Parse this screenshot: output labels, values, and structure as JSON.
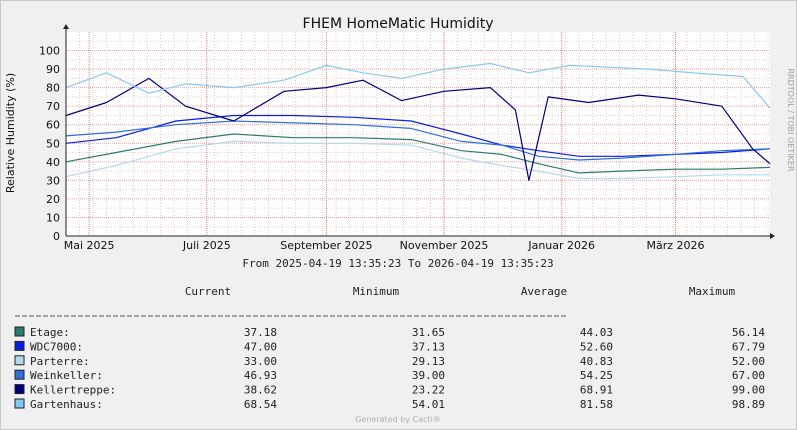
{
  "chart_data": {
    "type": "line",
    "title": "FHEM HomeMatic Humidity",
    "ylabel": "Relative Humidity (%)",
    "ylim": [
      0,
      110
    ],
    "yticks": [
      "0",
      "10",
      "20",
      "30",
      "40",
      "50",
      "60",
      "70",
      "80",
      "90",
      "100"
    ],
    "x_range": [
      "2025-04-19",
      "2026-04-19"
    ],
    "xticks": [
      {
        "date": "2025-05-01",
        "label": "Mai 2025"
      },
      {
        "date": "2025-07-01",
        "label": "Juli 2025"
      },
      {
        "date": "2025-09-01",
        "label": "September 2025"
      },
      {
        "date": "2025-11-01",
        "label": "November 2025"
      },
      {
        "date": "2026-01-01",
        "label": "Januar 2026"
      },
      {
        "date": "2026-03-01",
        "label": "März 2026"
      }
    ],
    "grid": true,
    "period_text": "From 2025-04-19 13:35:23 To 2026-04-19 13:35:23",
    "side_text": "RRDTOOL / TOBI OETIKER",
    "footer": "Generated by Cacti®",
    "legend_headers": {
      "current": "Current",
      "minimum": "Minimum",
      "average": "Average",
      "maximum": "Maximum"
    },
    "series": [
      {
        "name": "Etage:",
        "color": "#2e7a70",
        "current": "37.18",
        "minimum": "31.65",
        "average": "44.03",
        "maximum": "56.14",
        "x": [
          "2025-04-19",
          "2025-05-15",
          "2025-06-15",
          "2025-07-15",
          "2025-08-15",
          "2025-09-15",
          "2025-10-15",
          "2025-11-10",
          "2025-12-01",
          "2025-12-20",
          "2026-01-10",
          "2026-02-01",
          "2026-03-01",
          "2026-03-25",
          "2026-04-19"
        ],
        "values": [
          40,
          45,
          51,
          55,
          53,
          53,
          52,
          46,
          44,
          39,
          34,
          35,
          36,
          36,
          37
        ]
      },
      {
        "name": "WDC7000:",
        "color": "#0a1ee0",
        "current": "47.00",
        "minimum": "37.13",
        "average": "52.60",
        "maximum": "67.79",
        "x": [
          "2025-04-19",
          "2025-05-15",
          "2025-06-15",
          "2025-07-15",
          "2025-08-15",
          "2025-09-15",
          "2025-10-15",
          "2025-11-10",
          "2025-12-01",
          "2025-12-20",
          "2026-01-10",
          "2026-02-01",
          "2026-03-01",
          "2026-03-25",
          "2026-04-19"
        ],
        "values": [
          50,
          53,
          62,
          65,
          65,
          64,
          62,
          55,
          49,
          46,
          43,
          43,
          44,
          45,
          47
        ]
      },
      {
        "name": "Parterre:",
        "color": "#b4d8ee",
        "current": "33.00",
        "minimum": "29.13",
        "average": "40.83",
        "maximum": "52.00",
        "x": [
          "2025-04-19",
          "2025-05-15",
          "2025-06-15",
          "2025-07-15",
          "2025-08-15",
          "2025-09-15",
          "2025-10-15",
          "2025-11-10",
          "2025-12-01",
          "2025-12-20",
          "2026-01-10",
          "2026-02-01",
          "2026-03-01",
          "2026-03-25",
          "2026-04-19"
        ],
        "values": [
          32,
          38,
          47,
          51,
          50,
          50,
          49,
          42,
          38,
          35,
          31,
          31,
          32,
          33,
          33
        ]
      },
      {
        "name": "Weinkeller:",
        "color": "#2f6fd8",
        "current": "46.93",
        "minimum": "39.00",
        "average": "54.25",
        "maximum": "67.00",
        "x": [
          "2025-04-19",
          "2025-05-15",
          "2025-06-15",
          "2025-07-15",
          "2025-08-15",
          "2025-09-15",
          "2025-10-15",
          "2025-11-10",
          "2025-12-01",
          "2025-12-20",
          "2026-01-10",
          "2026-02-01",
          "2026-03-01",
          "2026-03-25",
          "2026-04-19"
        ],
        "values": [
          54,
          56,
          60,
          62,
          61,
          60,
          58,
          51,
          49,
          43,
          41,
          42,
          44,
          46,
          47
        ]
      },
      {
        "name": "Kellertreppe:",
        "color": "#00007a",
        "current": "38.62",
        "minimum": "23.22",
        "average": "68.91",
        "maximum": "99.00",
        "x": [
          "2025-04-19",
          "2025-05-10",
          "2025-06-01",
          "2025-06-20",
          "2025-07-15",
          "2025-08-10",
          "2025-09-01",
          "2025-09-20",
          "2025-10-10",
          "2025-11-01",
          "2025-11-25",
          "2025-12-08",
          "2025-12-15",
          "2025-12-25",
          "2026-01-15",
          "2026-02-10",
          "2026-03-01",
          "2026-03-25",
          "2026-04-10",
          "2026-04-19"
        ],
        "values": [
          65,
          72,
          85,
          70,
          62,
          78,
          80,
          84,
          73,
          78,
          80,
          68,
          30,
          75,
          72,
          76,
          74,
          70,
          47,
          39
        ]
      },
      {
        "name": "Gartenhaus:",
        "color": "#87c8f0",
        "current": "68.54",
        "minimum": "54.01",
        "average": "81.58",
        "maximum": "98.89",
        "x": [
          "2025-04-19",
          "2025-05-10",
          "2025-06-01",
          "2025-06-20",
          "2025-07-15",
          "2025-08-10",
          "2025-09-01",
          "2025-09-20",
          "2025-10-10",
          "2025-11-01",
          "2025-11-25",
          "2025-12-15",
          "2026-01-05",
          "2026-01-25",
          "2026-02-15",
          "2026-03-10",
          "2026-04-05",
          "2026-04-19"
        ],
        "values": [
          80,
          88,
          77,
          82,
          80,
          84,
          92,
          88,
          85,
          90,
          93,
          88,
          92,
          91,
          90,
          88,
          86,
          69
        ]
      }
    ]
  }
}
